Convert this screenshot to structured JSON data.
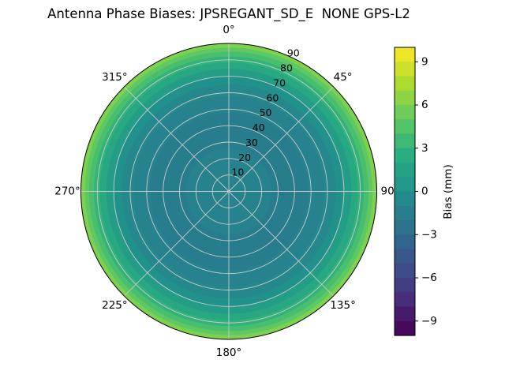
{
  "chart_data": {
    "type": "polar_contour",
    "title": "Antenna Phase Biases: JPSREGANT_SD_E  NONE GPS-L2",
    "colormap": "viridis",
    "background_color": "#ffffff",
    "grid_color": "#c9c9c9",
    "colorbar_label": "Bias (mm)",
    "value_range": [
      -10,
      10
    ],
    "colorbar_segments": 20,
    "colorbar_ticks": [
      {
        "label": "9",
        "value": 9
      },
      {
        "label": "6",
        "value": 6
      },
      {
        "label": "3",
        "value": 3
      },
      {
        "label": "0",
        "value": 0
      },
      {
        "label": "−3",
        "value": -3
      },
      {
        "label": "−6",
        "value": -6
      },
      {
        "label": "−9",
        "value": -9
      }
    ],
    "theta_ticks": [
      {
        "label": "0°",
        "angle": 0
      },
      {
        "label": "45°",
        "angle": 45
      },
      {
        "label": "90°",
        "angle": 90
      },
      {
        "label": "135°",
        "angle": 135
      },
      {
        "label": "180°",
        "angle": 180
      },
      {
        "label": "225°",
        "angle": 225
      },
      {
        "label": "270°",
        "angle": 270
      },
      {
        "label": "315°",
        "angle": 315
      }
    ],
    "radial_ticks": [
      10,
      20,
      30,
      40,
      50,
      60,
      70,
      80,
      90
    ],
    "radial_max": 90,
    "radial_label_azimuth_deg": 25,
    "colormap_stops": [
      {
        "pos": 0.0,
        "color": "#440154"
      },
      {
        "pos": 0.125,
        "color": "#472d7b"
      },
      {
        "pos": 0.25,
        "color": "#3b528b"
      },
      {
        "pos": 0.375,
        "color": "#2c728e"
      },
      {
        "pos": 0.5,
        "color": "#21918c"
      },
      {
        "pos": 0.625,
        "color": "#28ae80"
      },
      {
        "pos": 0.75,
        "color": "#5ec962"
      },
      {
        "pos": 0.875,
        "color": "#addc30"
      },
      {
        "pos": 1.0,
        "color": "#fde725"
      }
    ],
    "contour_bands": [
      {
        "zenith_outer": 90.0,
        "bias": 6.0
      },
      {
        "zenith_outer": 87.5,
        "bias": 5.0
      },
      {
        "zenith_outer": 85.0,
        "bias": 4.0
      },
      {
        "zenith_outer": 82.0,
        "bias": 3.0
      },
      {
        "zenith_outer": 78.5,
        "bias": 2.0
      },
      {
        "zenith_outer": 74.5,
        "bias": 1.0
      },
      {
        "zenith_outer": 70.0,
        "bias": 0.0
      },
      {
        "zenith_outer": 65.0,
        "bias": -0.7
      },
      {
        "zenith_outer": 58.0,
        "bias": -1.2
      },
      {
        "zenith_outer": 48.0,
        "bias": -1.6
      },
      {
        "zenith_outer": 26.0,
        "bias": -1.2
      }
    ]
  }
}
